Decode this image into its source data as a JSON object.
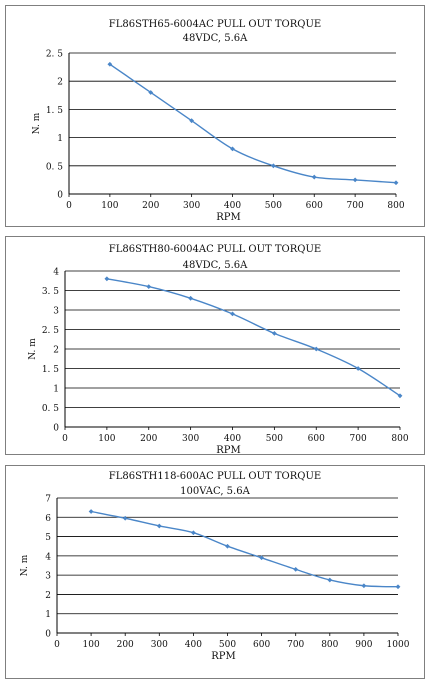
{
  "colors": {
    "series": "#4a86c8",
    "axis": "#000000",
    "grid": "#000000",
    "frame": "#7f7f7f"
  },
  "chart_data": [
    {
      "type": "line",
      "title": "FL86STH65-6004AC PULL OUT TORQUE",
      "subtitle": "48VDC, 5.6A",
      "xlabel": "RPM",
      "ylabel": "N. m",
      "xlim": [
        0,
        800
      ],
      "ylim": [
        0,
        2.5
      ],
      "x_ticks": [
        0,
        100,
        200,
        300,
        400,
        500,
        600,
        700,
        800
      ],
      "y_ticks": [
        0,
        0.5,
        1,
        1.5,
        2,
        2.5
      ],
      "x_tick_labels": [
        "0",
        "100",
        "200",
        "300",
        "400",
        "500",
        "600",
        "700",
        "800"
      ],
      "y_tick_labels": [
        "0",
        "0. 5",
        "1",
        "1. 5",
        "2",
        "2. 5"
      ],
      "grid": "horizontal",
      "legend": "none",
      "x": [
        100,
        200,
        300,
        400,
        500,
        600,
        700,
        800
      ],
      "values": [
        2.3,
        1.8,
        1.3,
        0.8,
        0.5,
        0.3,
        0.25,
        0.2
      ]
    },
    {
      "type": "line",
      "title": "FL86STH80-6004AC PULL OUT TORQUE",
      "subtitle": "48VDC, 5.6A",
      "xlabel": "RPM",
      "ylabel": "N. m",
      "xlim": [
        0,
        800
      ],
      "ylim": [
        0,
        4
      ],
      "x_ticks": [
        0,
        100,
        200,
        300,
        400,
        500,
        600,
        700,
        800
      ],
      "y_ticks": [
        0,
        0.5,
        1,
        1.5,
        2,
        2.5,
        3,
        3.5,
        4
      ],
      "x_tick_labels": [
        "0",
        "100",
        "200",
        "300",
        "400",
        "500",
        "600",
        "700",
        "800"
      ],
      "y_tick_labels": [
        "0",
        "0. 5",
        "1",
        "1. 5",
        "2",
        "2. 5",
        "3",
        "3. 5",
        "4"
      ],
      "grid": "horizontal",
      "legend": "none",
      "x": [
        100,
        200,
        300,
        400,
        500,
        600,
        700,
        800
      ],
      "values": [
        3.8,
        3.6,
        3.3,
        2.9,
        2.4,
        2.0,
        1.5,
        0.8
      ]
    },
    {
      "type": "line",
      "title": "FL86STH118-600AC PULL OUT TORQUE",
      "subtitle": "100VAC, 5.6A",
      "xlabel": "RPM",
      "ylabel": "N. m",
      "xlim": [
        0,
        1000
      ],
      "ylim": [
        0,
        7
      ],
      "x_ticks": [
        0,
        100,
        200,
        300,
        400,
        500,
        600,
        700,
        800,
        900,
        1000
      ],
      "y_ticks": [
        0,
        1,
        2,
        3,
        4,
        5,
        6,
        7
      ],
      "x_tick_labels": [
        "0",
        "100",
        "200",
        "300",
        "400",
        "500",
        "600",
        "700",
        "800",
        "900",
        "1000"
      ],
      "y_tick_labels": [
        "0",
        "1",
        "2",
        "3",
        "4",
        "5",
        "6",
        "7"
      ],
      "grid": "horizontal",
      "legend": "none",
      "x": [
        100,
        200,
        300,
        400,
        500,
        600,
        700,
        800,
        900,
        1000
      ],
      "values": [
        6.3,
        5.95,
        5.55,
        5.2,
        4.5,
        3.9,
        3.3,
        2.75,
        2.45,
        2.4
      ]
    }
  ]
}
